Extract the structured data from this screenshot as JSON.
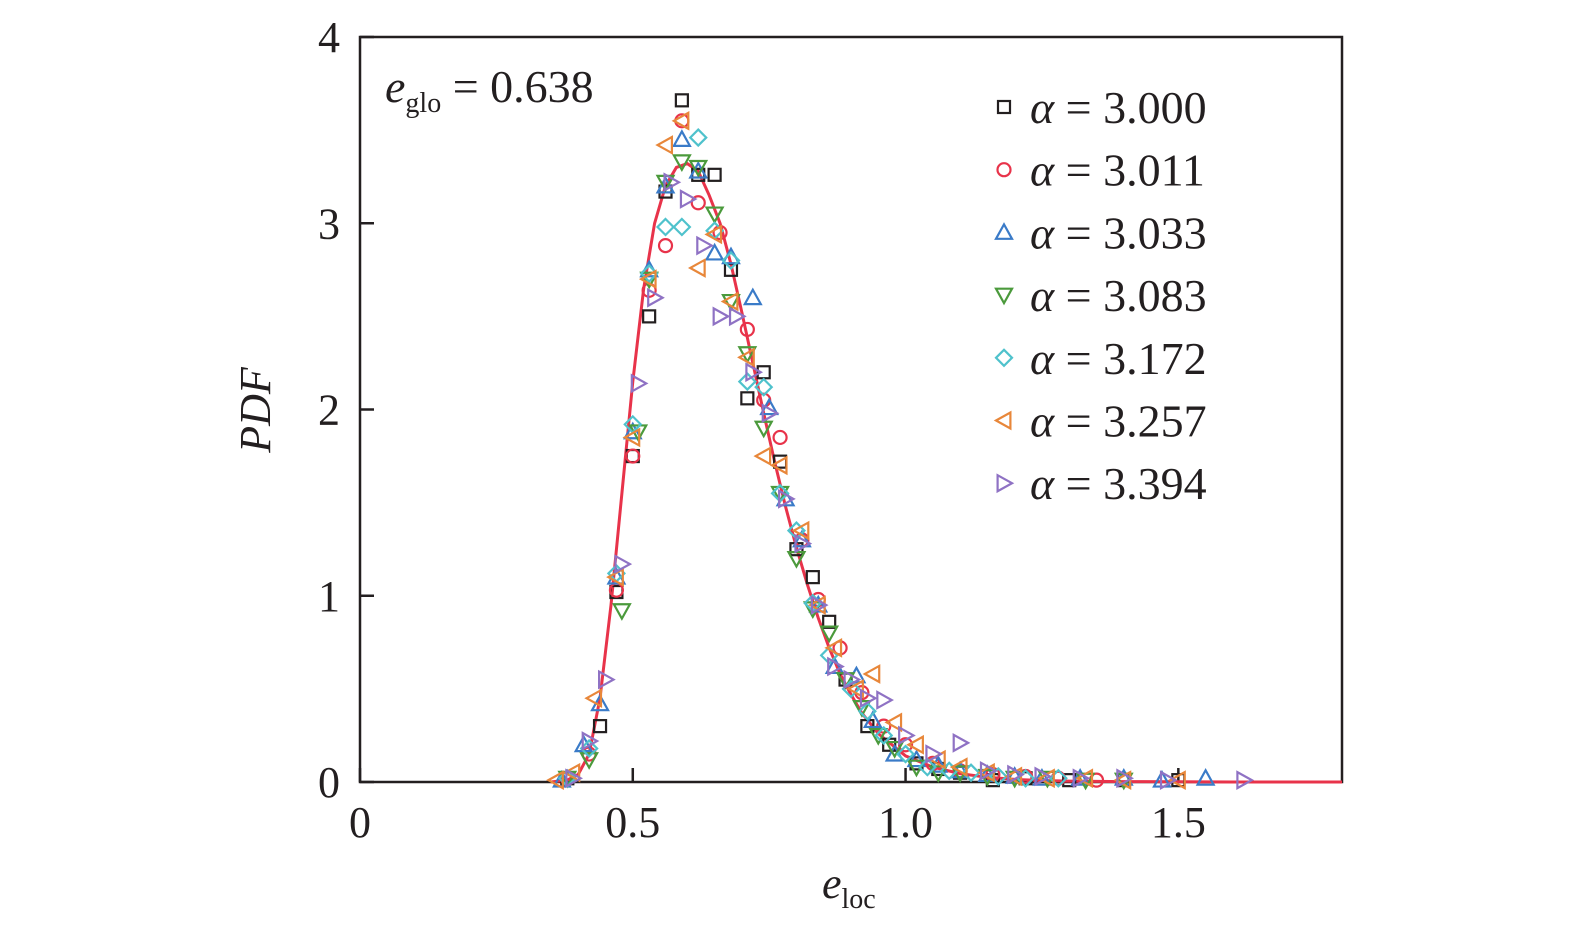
{
  "chart_data": {
    "type": "scatter",
    "xlabel": "e",
    "xlabel_sub": "loc",
    "ylabel": "PDF",
    "xlim": [
      0,
      1.8
    ],
    "ylim": [
      0,
      4
    ],
    "xticks": [
      0,
      0.5,
      1.0,
      1.5
    ],
    "xtick_labels": [
      "0",
      "0.5",
      "1.0",
      "1.5"
    ],
    "yticks": [
      0,
      1,
      2,
      3,
      4
    ],
    "ytick_labels": [
      "0",
      "1",
      "2",
      "3",
      "4"
    ],
    "grid": false,
    "legend_position": "top-right",
    "annotation": {
      "symbol": "e",
      "sub": "glo",
      "text": " = 0.638"
    },
    "fit_line": {
      "color": "#e8334a",
      "x": [
        0.35,
        0.38,
        0.4,
        0.42,
        0.44,
        0.46,
        0.48,
        0.5,
        0.52,
        0.54,
        0.56,
        0.58,
        0.6,
        0.62,
        0.64,
        0.66,
        0.68,
        0.7,
        0.72,
        0.74,
        0.76,
        0.78,
        0.8,
        0.82,
        0.84,
        0.86,
        0.88,
        0.9,
        0.92,
        0.95,
        1.0,
        1.05,
        1.1,
        1.15,
        1.2,
        1.25,
        1.3,
        1.4,
        1.5,
        1.6,
        1.8
      ],
      "y": [
        0.0,
        0.01,
        0.04,
        0.15,
        0.45,
        0.95,
        1.55,
        2.15,
        2.65,
        3.0,
        3.2,
        3.3,
        3.32,
        3.28,
        3.15,
        3.0,
        2.78,
        2.52,
        2.25,
        1.98,
        1.72,
        1.48,
        1.26,
        1.06,
        0.88,
        0.72,
        0.58,
        0.47,
        0.37,
        0.26,
        0.14,
        0.08,
        0.045,
        0.025,
        0.014,
        0.008,
        0.005,
        0.002,
        0.001,
        0.0,
        0.0
      ]
    },
    "series": [
      {
        "name": "α = 3.000",
        "marker": "square",
        "color": "#231f20",
        "x": [
          0.38,
          0.44,
          0.47,
          0.5,
          0.53,
          0.56,
          0.59,
          0.62,
          0.65,
          0.68,
          0.71,
          0.74,
          0.77,
          0.8,
          0.83,
          0.86,
          0.89,
          0.93,
          0.97,
          1.02,
          1.06,
          1.1,
          1.16,
          1.22,
          1.3,
          1.4,
          1.5
        ],
        "y": [
          0.02,
          0.3,
          1.02,
          1.75,
          2.5,
          3.17,
          3.66,
          3.26,
          3.26,
          2.75,
          2.06,
          2.2,
          1.72,
          1.25,
          1.1,
          0.86,
          0.55,
          0.3,
          0.2,
          0.1,
          0.07,
          0.05,
          0.01,
          0.02,
          0.01,
          0.01,
          0.01
        ]
      },
      {
        "name": "α = 3.011",
        "marker": "circle",
        "color": "#e8334a",
        "x": [
          0.38,
          0.42,
          0.47,
          0.5,
          0.53,
          0.56,
          0.59,
          0.62,
          0.66,
          0.71,
          0.74,
          0.77,
          0.81,
          0.84,
          0.88,
          0.92,
          0.96,
          1.0,
          1.05,
          1.1,
          1.16,
          1.22,
          1.28,
          1.35
        ],
        "y": [
          0.02,
          0.15,
          1.03,
          1.75,
          2.64,
          2.88,
          3.55,
          3.11,
          2.95,
          2.43,
          2.05,
          1.85,
          1.3,
          0.98,
          0.72,
          0.48,
          0.3,
          0.2,
          0.1,
          0.06,
          0.04,
          0.03,
          0.02,
          0.01
        ]
      },
      {
        "name": "α = 3.033",
        "marker": "triangle-up",
        "color": "#3a7bc8",
        "x": [
          0.37,
          0.41,
          0.44,
          0.47,
          0.5,
          0.53,
          0.56,
          0.59,
          0.62,
          0.65,
          0.68,
          0.72,
          0.75,
          0.78,
          0.81,
          0.84,
          0.87,
          0.91,
          0.94,
          0.98,
          1.02,
          1.06,
          1.1,
          1.15,
          1.2,
          1.25,
          1.32,
          1.4,
          1.47,
          1.55
        ],
        "y": [
          0.01,
          0.2,
          0.42,
          1.1,
          1.88,
          2.75,
          3.2,
          3.45,
          3.28,
          2.84,
          2.82,
          2.6,
          2.01,
          1.52,
          1.3,
          0.95,
          0.62,
          0.57,
          0.33,
          0.15,
          0.12,
          0.09,
          0.06,
          0.04,
          0.03,
          0.02,
          0.02,
          0.02,
          0.01,
          0.02
        ]
      },
      {
        "name": "α = 3.083",
        "marker": "triangle-down",
        "color": "#4b9a3c",
        "x": [
          0.38,
          0.42,
          0.48,
          0.51,
          0.53,
          0.56,
          0.59,
          0.62,
          0.65,
          0.68,
          0.71,
          0.74,
          0.77,
          0.8,
          0.83,
          0.86,
          0.89,
          0.92,
          0.95,
          0.98,
          1.02,
          1.06,
          1.1,
          1.15,
          1.2,
          1.26,
          1.33,
          1.4
        ],
        "y": [
          0.02,
          0.12,
          0.92,
          1.88,
          2.7,
          3.22,
          3.33,
          3.3,
          3.05,
          2.58,
          2.3,
          1.9,
          1.55,
          1.2,
          0.93,
          0.8,
          0.55,
          0.4,
          0.25,
          0.18,
          0.08,
          0.05,
          0.05,
          0.03,
          0.02,
          0.02,
          0.01,
          0.01
        ]
      },
      {
        "name": "α = 3.172",
        "marker": "diamond",
        "color": "#4fc2cc",
        "x": [
          0.38,
          0.42,
          0.47,
          0.5,
          0.53,
          0.56,
          0.59,
          0.62,
          0.65,
          0.68,
          0.71,
          0.74,
          0.77,
          0.8,
          0.83,
          0.86,
          0.9,
          0.93,
          0.96,
          1.0,
          1.04,
          1.08,
          1.12,
          1.17,
          1.22,
          1.28
        ],
        "y": [
          0.02,
          0.18,
          1.12,
          1.92,
          2.73,
          2.98,
          2.98,
          3.46,
          2.96,
          2.8,
          2.15,
          2.12,
          1.55,
          1.35,
          0.96,
          0.68,
          0.5,
          0.38,
          0.25,
          0.15,
          0.08,
          0.06,
          0.05,
          0.03,
          0.02,
          0.02
        ]
      },
      {
        "name": "α = 3.257",
        "marker": "triangle-left",
        "color": "#e8873a",
        "x": [
          0.36,
          0.39,
          0.43,
          0.47,
          0.5,
          0.53,
          0.56,
          0.59,
          0.62,
          0.65,
          0.68,
          0.71,
          0.74,
          0.77,
          0.81,
          0.84,
          0.87,
          0.91,
          0.94,
          0.98,
          1.02,
          1.06,
          1.1,
          1.15,
          1.2,
          1.26,
          1.33,
          1.4,
          1.5
        ],
        "y": [
          0.01,
          0.05,
          0.45,
          1.1,
          1.85,
          2.7,
          3.42,
          3.55,
          2.76,
          2.94,
          2.58,
          2.28,
          1.75,
          1.7,
          1.35,
          0.95,
          0.72,
          0.5,
          0.58,
          0.32,
          0.2,
          0.12,
          0.08,
          0.05,
          0.03,
          0.02,
          0.02,
          0.01,
          0.01
        ]
      },
      {
        "name": "α = 3.394",
        "marker": "triangle-right",
        "color": "#8f72c4",
        "x": [
          0.39,
          0.42,
          0.45,
          0.48,
          0.51,
          0.54,
          0.57,
          0.6,
          0.63,
          0.66,
          0.69,
          0.72,
          0.75,
          0.78,
          0.81,
          0.84,
          0.87,
          0.9,
          0.93,
          0.96,
          1.0,
          1.05,
          1.1,
          1.15,
          1.2,
          1.25,
          1.32,
          1.4,
          1.48,
          1.62
        ],
        "y": [
          0.02,
          0.22,
          0.55,
          1.17,
          2.14,
          2.6,
          3.22,
          3.13,
          2.88,
          2.5,
          2.5,
          2.2,
          1.98,
          1.52,
          1.28,
          0.95,
          0.62,
          0.55,
          0.45,
          0.44,
          0.25,
          0.15,
          0.21,
          0.06,
          0.04,
          0.03,
          0.02,
          0.02,
          0.01,
          0.01
        ]
      }
    ]
  }
}
